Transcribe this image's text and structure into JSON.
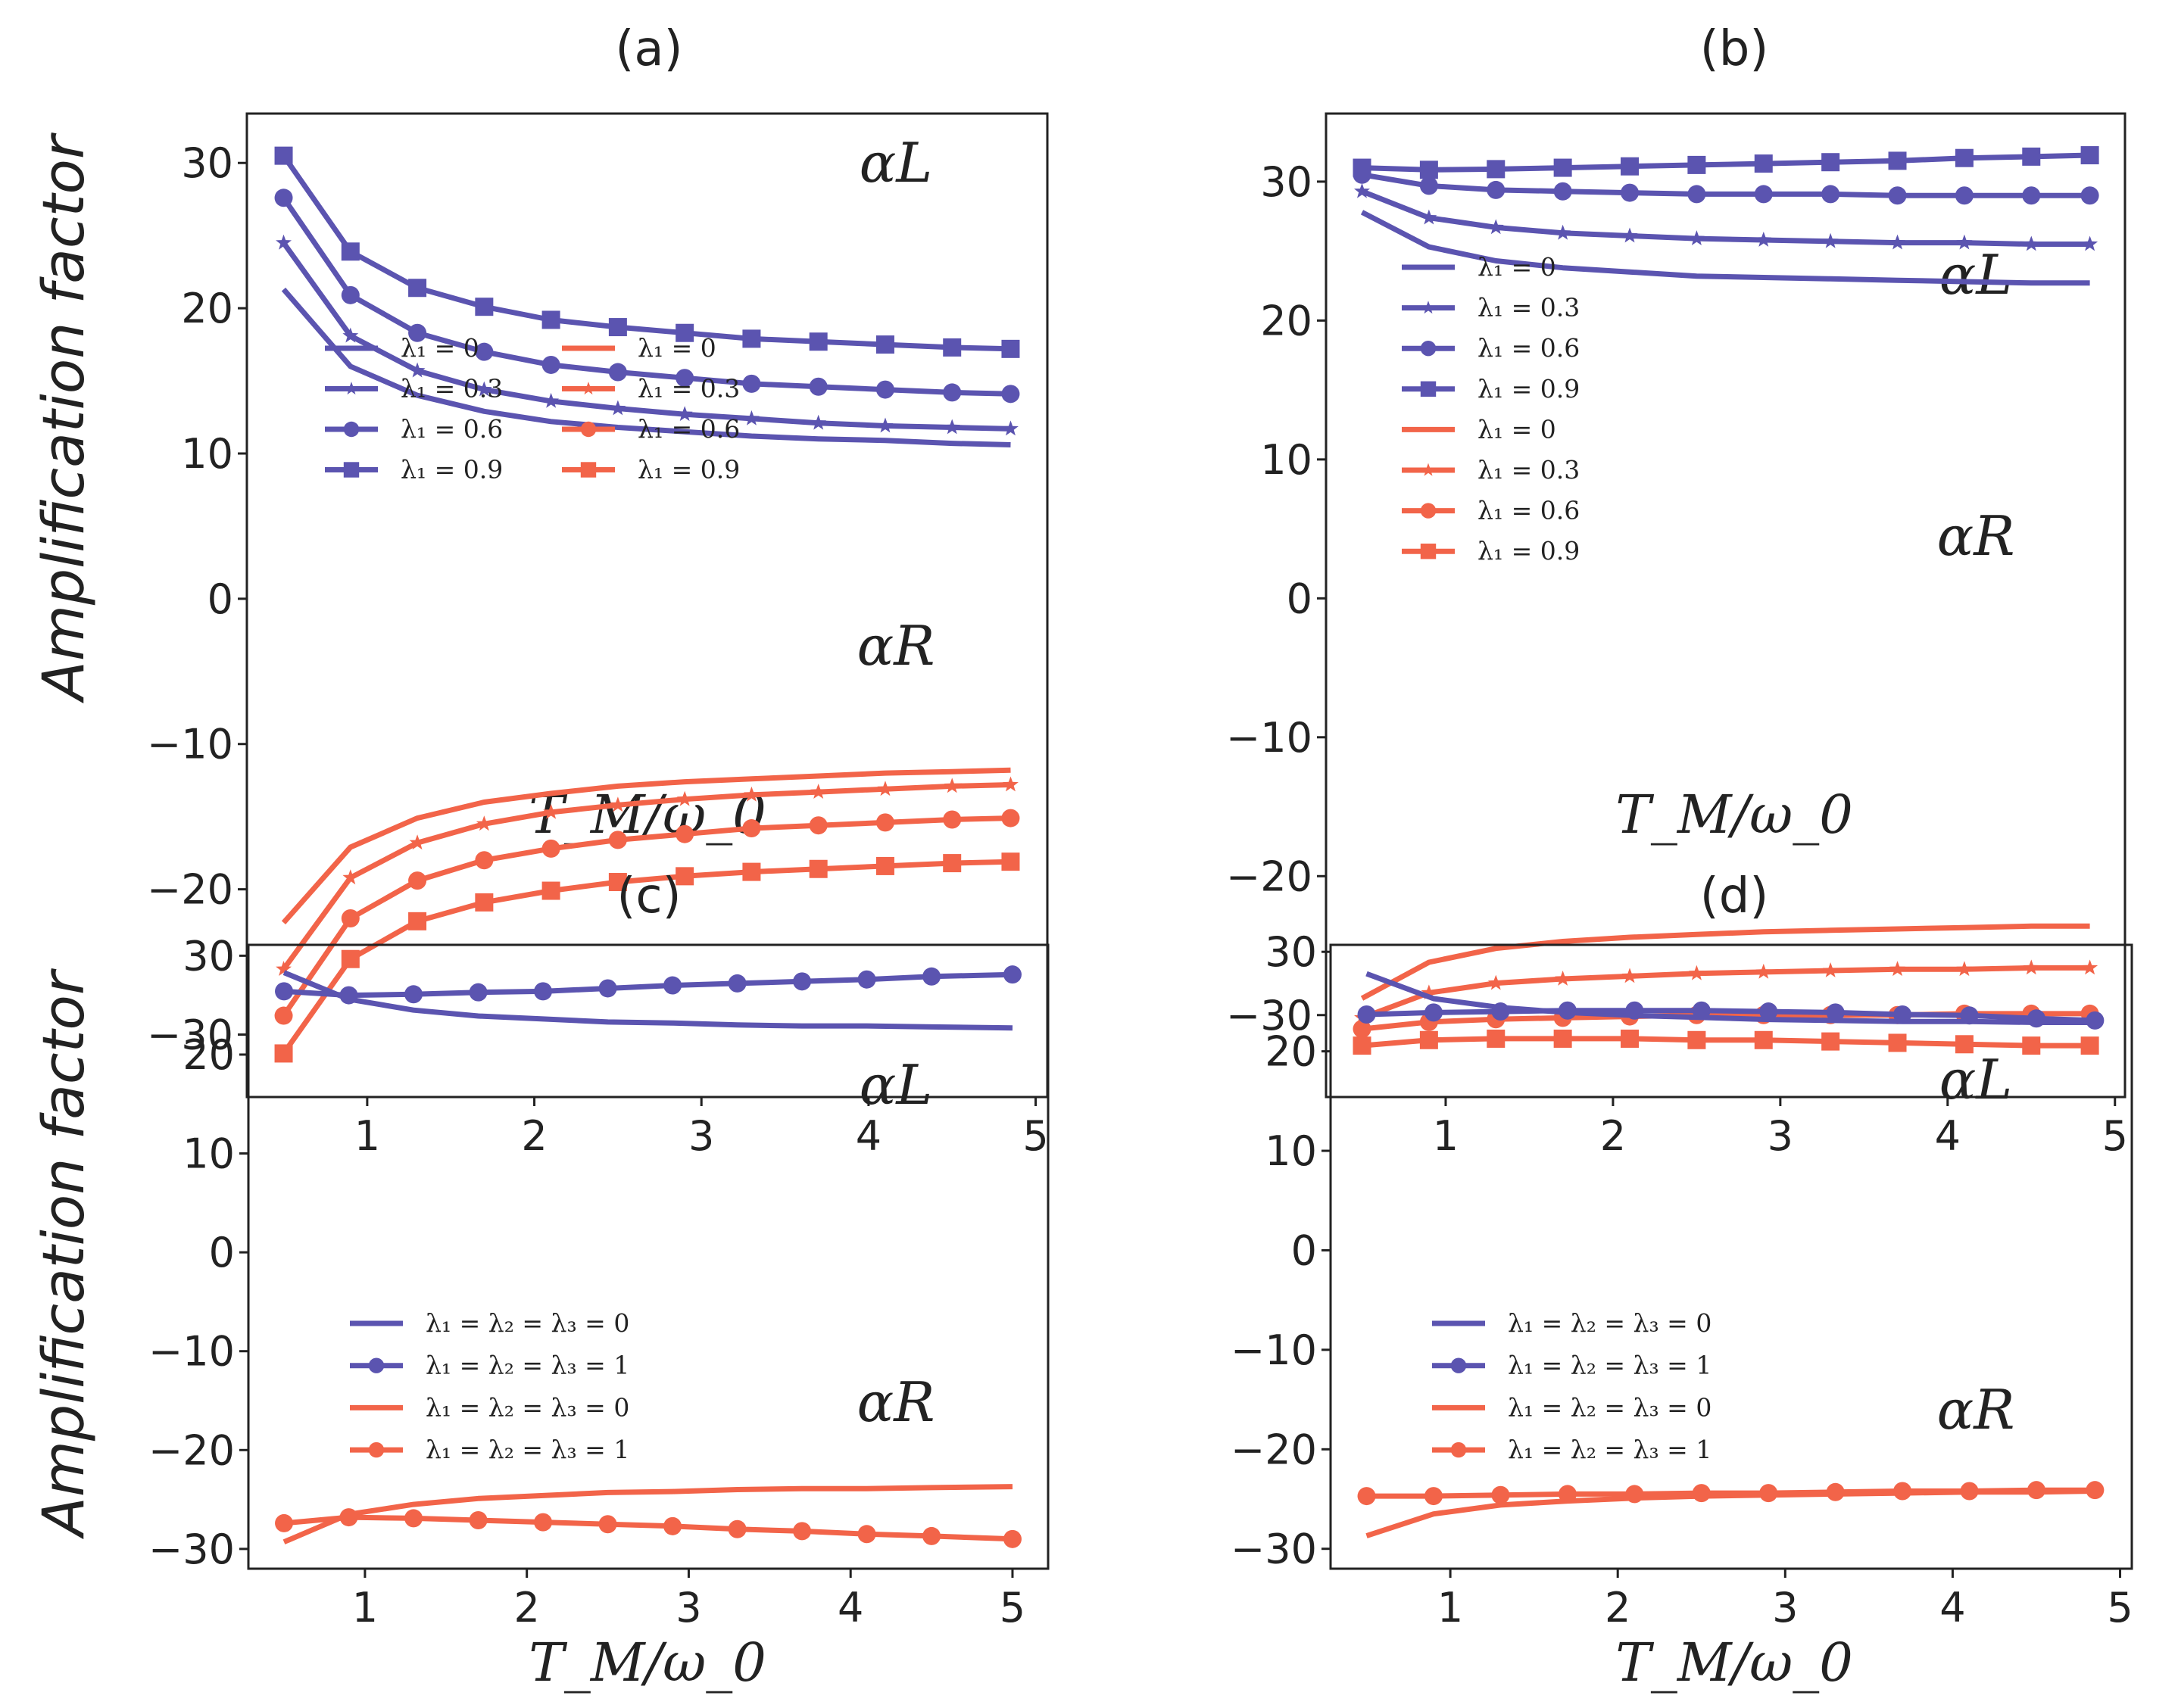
{
  "colors": {
    "blue": "#5b54b0",
    "red": "#f26449"
  },
  "chart_data": [
    {
      "type": "line",
      "title": "(a)",
      "xlabel": "T_M/ω_0",
      "ylabel": "Amplification factor",
      "xlim": [
        0.28,
        5.07
      ],
      "ylim": [
        -34.3,
        33.4
      ],
      "xticks": [
        "1",
        "2",
        "3",
        "4",
        "5"
      ],
      "yticks": [
        "30",
        "20",
        "10",
        "0",
        "−10",
        "−20",
        "−30"
      ],
      "annotations": [
        "αL",
        "αR"
      ],
      "x": [
        0.5,
        0.9,
        1.3,
        1.7,
        2.1,
        2.5,
        2.9,
        3.3,
        3.7,
        4.1,
        4.5,
        4.85
      ],
      "series": [
        {
          "name": "λ₁ = 0",
          "color": "blue",
          "marker": "none",
          "values": [
            21.3,
            16.0,
            14.0,
            12.9,
            12.2,
            11.8,
            11.5,
            11.2,
            11.0,
            10.9,
            10.7,
            10.6
          ]
        },
        {
          "name": "λ₁ = 0.3",
          "color": "blue",
          "marker": "star",
          "values": [
            24.5,
            18.1,
            15.7,
            14.4,
            13.6,
            13.1,
            12.7,
            12.4,
            12.1,
            11.9,
            11.8,
            11.7
          ]
        },
        {
          "name": "λ₁ = 0.6",
          "color": "blue",
          "marker": "circle",
          "values": [
            27.6,
            20.9,
            18.3,
            17.0,
            16.1,
            15.6,
            15.2,
            14.8,
            14.6,
            14.4,
            14.2,
            14.1
          ]
        },
        {
          "name": "λ₁ = 0.9",
          "color": "blue",
          "marker": "square",
          "values": [
            30.5,
            23.9,
            21.4,
            20.1,
            19.2,
            18.7,
            18.3,
            17.9,
            17.7,
            17.5,
            17.3,
            17.2
          ]
        },
        {
          "name": "λ₁ = 0",
          "color": "red",
          "marker": "none",
          "values": [
            -22.3,
            -17.1,
            -15.1,
            -14.0,
            -13.4,
            -12.9,
            -12.6,
            -12.4,
            -12.2,
            -12.0,
            -11.9,
            -11.8
          ]
        },
        {
          "name": "λ₁ = 0.3",
          "color": "red",
          "marker": "star",
          "values": [
            -25.5,
            -19.2,
            -16.8,
            -15.5,
            -14.7,
            -14.2,
            -13.8,
            -13.5,
            -13.3,
            -13.1,
            -12.9,
            -12.8
          ]
        },
        {
          "name": "λ₁ = 0.6",
          "color": "red",
          "marker": "circle",
          "values": [
            -28.7,
            -22.0,
            -19.4,
            -18.0,
            -17.2,
            -16.6,
            -16.2,
            -15.8,
            -15.6,
            -15.4,
            -15.2,
            -15.1
          ]
        },
        {
          "name": "λ₁ = 0.9",
          "color": "red",
          "marker": "square",
          "values": [
            -31.3,
            -24.8,
            -22.2,
            -20.9,
            -20.1,
            -19.5,
            -19.1,
            -18.8,
            -18.6,
            -18.4,
            -18.2,
            -18.1
          ]
        }
      ],
      "legend": "center-left, 2 columns"
    },
    {
      "type": "line",
      "title": "(b)",
      "xlabel": "T_M/ω_0",
      "ylabel": "",
      "xlim": [
        0.285,
        5.06
      ],
      "ylim": [
        -35.9,
        34.9
      ],
      "xticks": [
        "1",
        "2",
        "3",
        "4",
        "5"
      ],
      "yticks": [
        "30",
        "20",
        "10",
        "0",
        "−10",
        "−20",
        "−30"
      ],
      "annotations": [
        "αL",
        "αR"
      ],
      "x": [
        0.5,
        0.9,
        1.3,
        1.7,
        2.1,
        2.5,
        2.9,
        3.3,
        3.7,
        4.1,
        4.5,
        4.85
      ],
      "series": [
        {
          "name": "λ₁ = 0",
          "color": "blue",
          "marker": "none",
          "values": [
            27.8,
            25.3,
            24.3,
            23.8,
            23.5,
            23.2,
            23.1,
            23.0,
            22.9,
            22.8,
            22.7,
            22.7
          ]
        },
        {
          "name": "λ₁ = 0.3",
          "color": "blue",
          "marker": "star",
          "values": [
            29.3,
            27.4,
            26.7,
            26.3,
            26.1,
            25.9,
            25.8,
            25.7,
            25.6,
            25.6,
            25.5,
            25.5
          ]
        },
        {
          "name": "λ₁ = 0.6",
          "color": "blue",
          "marker": "circle",
          "values": [
            30.5,
            29.7,
            29.4,
            29.3,
            29.2,
            29.1,
            29.1,
            29.1,
            29.0,
            29.0,
            29.0,
            29.0
          ]
        },
        {
          "name": "λ₁ = 0.9",
          "color": "blue",
          "marker": "square",
          "values": [
            31.0,
            30.85,
            30.9,
            31.0,
            31.1,
            31.2,
            31.3,
            31.4,
            31.5,
            31.7,
            31.8,
            31.9
          ]
        },
        {
          "name": "λ₁ = 0",
          "color": "red",
          "marker": "none",
          "values": [
            -28.8,
            -26.2,
            -25.2,
            -24.7,
            -24.4,
            -24.2,
            -24.0,
            -23.9,
            -23.8,
            -23.7,
            -23.6,
            -23.6
          ]
        },
        {
          "name": "λ₁ = 0.3",
          "color": "red",
          "marker": "star",
          "values": [
            -30.2,
            -28.4,
            -27.7,
            -27.4,
            -27.2,
            -27.0,
            -26.9,
            -26.8,
            -26.7,
            -26.7,
            -26.6,
            -26.6
          ]
        },
        {
          "name": "λ₁ = 0.6",
          "color": "red",
          "marker": "circle",
          "values": [
            -31.0,
            -30.5,
            -30.3,
            -30.2,
            -30.1,
            -30.0,
            -30.0,
            -30.0,
            -30.0,
            -29.9,
            -29.9,
            -29.9
          ]
        },
        {
          "name": "λ₁ = 0.9",
          "color": "red",
          "marker": "square",
          "values": [
            -32.2,
            -31.8,
            -31.7,
            -31.7,
            -31.7,
            -31.8,
            -31.8,
            -31.9,
            -32.0,
            -32.1,
            -32.2,
            -32.2
          ]
        }
      ],
      "legend": "center-left, 1 column"
    },
    {
      "type": "line",
      "title": "(c)",
      "xlabel": "T_M/ω_0",
      "ylabel": "Amplification factor",
      "xlim": [
        0.28,
        5.22
      ],
      "ylim": [
        -32.0,
        31.1
      ],
      "xticks": [
        "1",
        "2",
        "3",
        "4",
        "5"
      ],
      "yticks": [
        "30",
        "20",
        "10",
        "0",
        "−10",
        "−20",
        "−30"
      ],
      "annotations": [
        "αL",
        "αR"
      ],
      "x": [
        0.5,
        0.9,
        1.3,
        1.7,
        2.1,
        2.5,
        2.9,
        3.3,
        3.7,
        4.1,
        4.5,
        5.0
      ],
      "series": [
        {
          "name": "λ₁ = λ₂ = λ₃ = 0",
          "color": "blue",
          "marker": "none",
          "values": [
            28.3,
            25.6,
            24.5,
            23.9,
            23.6,
            23.3,
            23.2,
            23.0,
            22.9,
            22.9,
            22.8,
            22.7
          ]
        },
        {
          "name": "λ₁ = λ₂ = λ₃ = 1",
          "color": "blue",
          "marker": "circle",
          "values": [
            26.4,
            26.0,
            26.1,
            26.3,
            26.4,
            26.7,
            27.0,
            27.2,
            27.4,
            27.6,
            27.9,
            28.1
          ]
        },
        {
          "name": "λ₁ = λ₂ = λ₃ = 0",
          "color": "red",
          "marker": "none",
          "values": [
            -29.3,
            -26.5,
            -25.5,
            -24.9,
            -24.6,
            -24.3,
            -24.2,
            -24.0,
            -23.9,
            -23.9,
            -23.8,
            -23.7
          ]
        },
        {
          "name": "λ₁ = λ₂ = λ₃ = 1",
          "color": "red",
          "marker": "circle",
          "values": [
            -27.4,
            -26.8,
            -26.9,
            -27.1,
            -27.3,
            -27.5,
            -27.7,
            -28.0,
            -28.2,
            -28.5,
            -28.7,
            -29.0
          ]
        }
      ],
      "legend": "lower-left"
    },
    {
      "type": "line",
      "title": "(d)",
      "xlabel": "T_M/ω_0",
      "ylabel": "",
      "xlim": [
        0.285,
        5.07
      ],
      "ylim": [
        -32.0,
        30.7
      ],
      "xticks": [
        "1",
        "2",
        "3",
        "4",
        "5"
      ],
      "yticks": [
        "30",
        "20",
        "10",
        "0",
        "−10",
        "−20",
        "−30"
      ],
      "annotations": [
        "αL",
        "αR"
      ],
      "x": [
        0.5,
        0.9,
        1.3,
        1.7,
        2.1,
        2.5,
        2.9,
        3.3,
        3.7,
        4.1,
        4.5,
        4.85
      ],
      "series": [
        {
          "name": "λ₁ = λ₂ = λ₃ = 0",
          "color": "blue",
          "marker": "none",
          "values": [
            27.8,
            25.3,
            24.4,
            23.9,
            23.6,
            23.4,
            23.2,
            23.1,
            23.0,
            23.0,
            22.9,
            22.9
          ]
        },
        {
          "name": "λ₁ = λ₂ = λ₃ = 1",
          "color": "blue",
          "marker": "circle",
          "values": [
            23.7,
            23.9,
            24.0,
            24.1,
            24.1,
            24.1,
            24.0,
            23.9,
            23.7,
            23.6,
            23.3,
            23.1
          ]
        },
        {
          "name": "λ₁ = λ₂ = λ₃ = 0",
          "color": "red",
          "marker": "none",
          "values": [
            -28.7,
            -26.5,
            -25.6,
            -25.2,
            -24.9,
            -24.7,
            -24.6,
            -24.5,
            -24.4,
            -24.3,
            -24.3,
            -24.2
          ]
        },
        {
          "name": "λ₁ = λ₂ = λ₃ = 1",
          "color": "red",
          "marker": "circle",
          "values": [
            -24.7,
            -24.7,
            -24.6,
            -24.5,
            -24.5,
            -24.4,
            -24.4,
            -24.3,
            -24.2,
            -24.2,
            -24.1,
            -24.1
          ]
        }
      ],
      "legend": "lower-left"
    }
  ]
}
